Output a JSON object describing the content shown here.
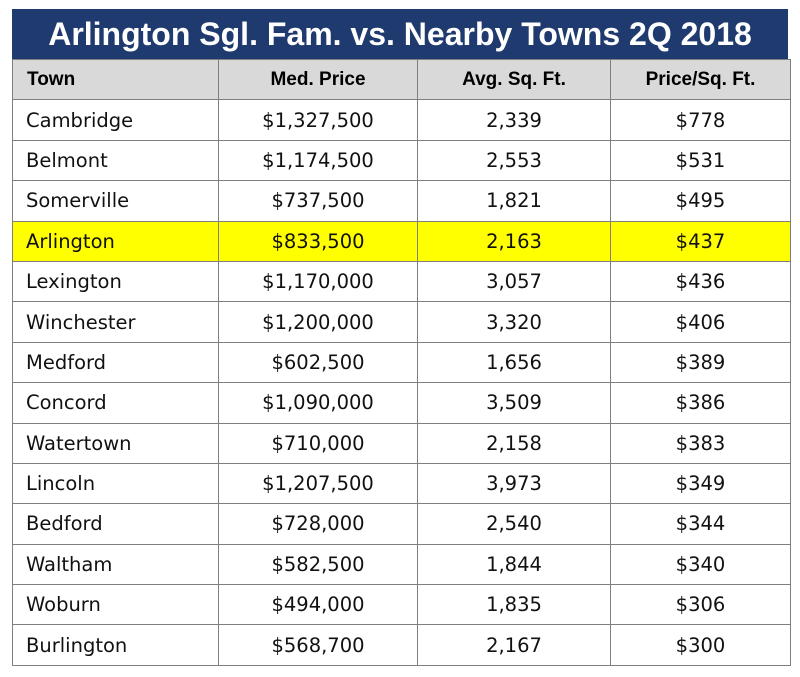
{
  "title": "Arlington Sgl. Fam. vs. Nearby Towns 2Q 2018",
  "colors": {
    "title_bg": "#1f3a6e",
    "header_bg": "#d9d9d9",
    "highlight": "#ffff00"
  },
  "chart_data": {
    "type": "table",
    "title": "Arlington Sgl. Fam. vs. Nearby Towns 2Q 2018",
    "columns": [
      "Town",
      "Med. Price",
      "Avg. Sq. Ft.",
      "Price/Sq. Ft."
    ],
    "highlighted_row": "Arlington",
    "rows": [
      [
        "Cambridge",
        "$1,327,500",
        "2,339",
        "$778"
      ],
      [
        "Belmont",
        "$1,174,500",
        "2,553",
        "$531"
      ],
      [
        "Somerville",
        "$737,500",
        "1,821",
        "$495"
      ],
      [
        "Arlington",
        "$833,500",
        "2,163",
        "$437"
      ],
      [
        "Lexington",
        "$1,170,000",
        "3,057",
        "$436"
      ],
      [
        "Winchester",
        "$1,200,000",
        "3,320",
        "$406"
      ],
      [
        "Medford",
        "$602,500",
        "1,656",
        "$389"
      ],
      [
        "Concord",
        "$1,090,000",
        "3,509",
        "$386"
      ],
      [
        "Watertown",
        "$710,000",
        "2,158",
        "$383"
      ],
      [
        "Lincoln",
        "$1,207,500",
        "3,973",
        "$349"
      ],
      [
        "Bedford",
        "$728,000",
        "2,540",
        "$344"
      ],
      [
        "Waltham",
        "$582,500",
        "1,844",
        "$340"
      ],
      [
        "Woburn",
        "$494,000",
        "1,835",
        "$306"
      ],
      [
        "Burlington",
        "$568,700",
        "2,167",
        "$300"
      ]
    ]
  }
}
